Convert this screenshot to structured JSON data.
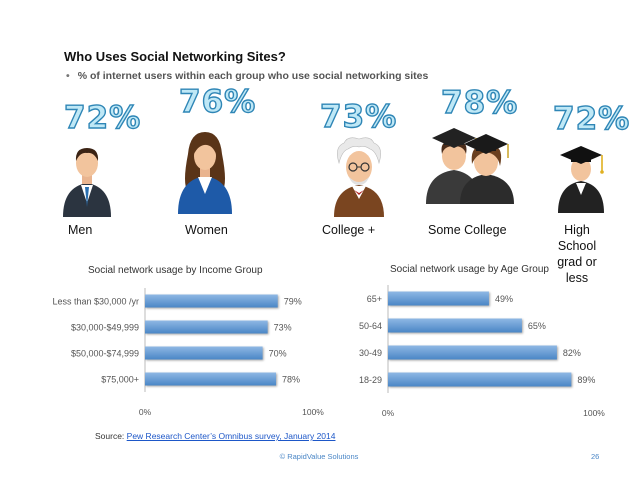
{
  "title": "Who Uses Social Networking Sites?",
  "subtitle": "% of internet users within each group who use social networking sites",
  "subtitle_bullet": "•",
  "groups": [
    {
      "label": "Men",
      "percent": "72%",
      "icon": "businessman-icon"
    },
    {
      "label": "Women",
      "percent": "76%",
      "icon": "businesswoman-icon"
    },
    {
      "label": "College +",
      "percent": "73%",
      "icon": "professor-icon"
    },
    {
      "label": "Some College",
      "percent": "78%",
      "icon": "graduates-icon"
    },
    {
      "label": "High School grad or less",
      "percent": "72%",
      "icon": "graduate-icon"
    }
  ],
  "chart_data": [
    {
      "type": "bar",
      "orientation": "horizontal",
      "title": "Social network usage by Income Group",
      "categories": [
        "Less than $30,000 /yr",
        "$30,000-$49,999",
        "$50,000-$74,999",
        "$75,000+"
      ],
      "values": [
        79,
        73,
        70,
        78
      ],
      "data_labels": [
        "79%",
        "73%",
        "70%",
        "78%"
      ],
      "xlim": [
        0,
        100
      ],
      "x_ticks": [
        "0%",
        "100%"
      ],
      "grid": false,
      "bar_color": "#4a86c6"
    },
    {
      "type": "bar",
      "orientation": "horizontal",
      "title": "Social network usage by Age Group",
      "categories": [
        "65+",
        "50-64",
        "30-49",
        "18-29"
      ],
      "values": [
        49,
        65,
        82,
        89
      ],
      "data_labels": [
        "49%",
        "65%",
        "82%",
        "89%"
      ],
      "xlim": [
        0,
        100
      ],
      "x_ticks": [
        "0%",
        "100%"
      ],
      "grid": false,
      "bar_color": "#4a86c6"
    }
  ],
  "source": {
    "prefix": "Source: ",
    "link": "Pew Research Center’s Omnibus survey, January 2014"
  },
  "footer": "© RapidValue Solutions",
  "page_number": "26",
  "colors": {
    "accent": "#2f86b6",
    "bar": "#4a86c6",
    "percent_fill": "#bfe8f6"
  }
}
